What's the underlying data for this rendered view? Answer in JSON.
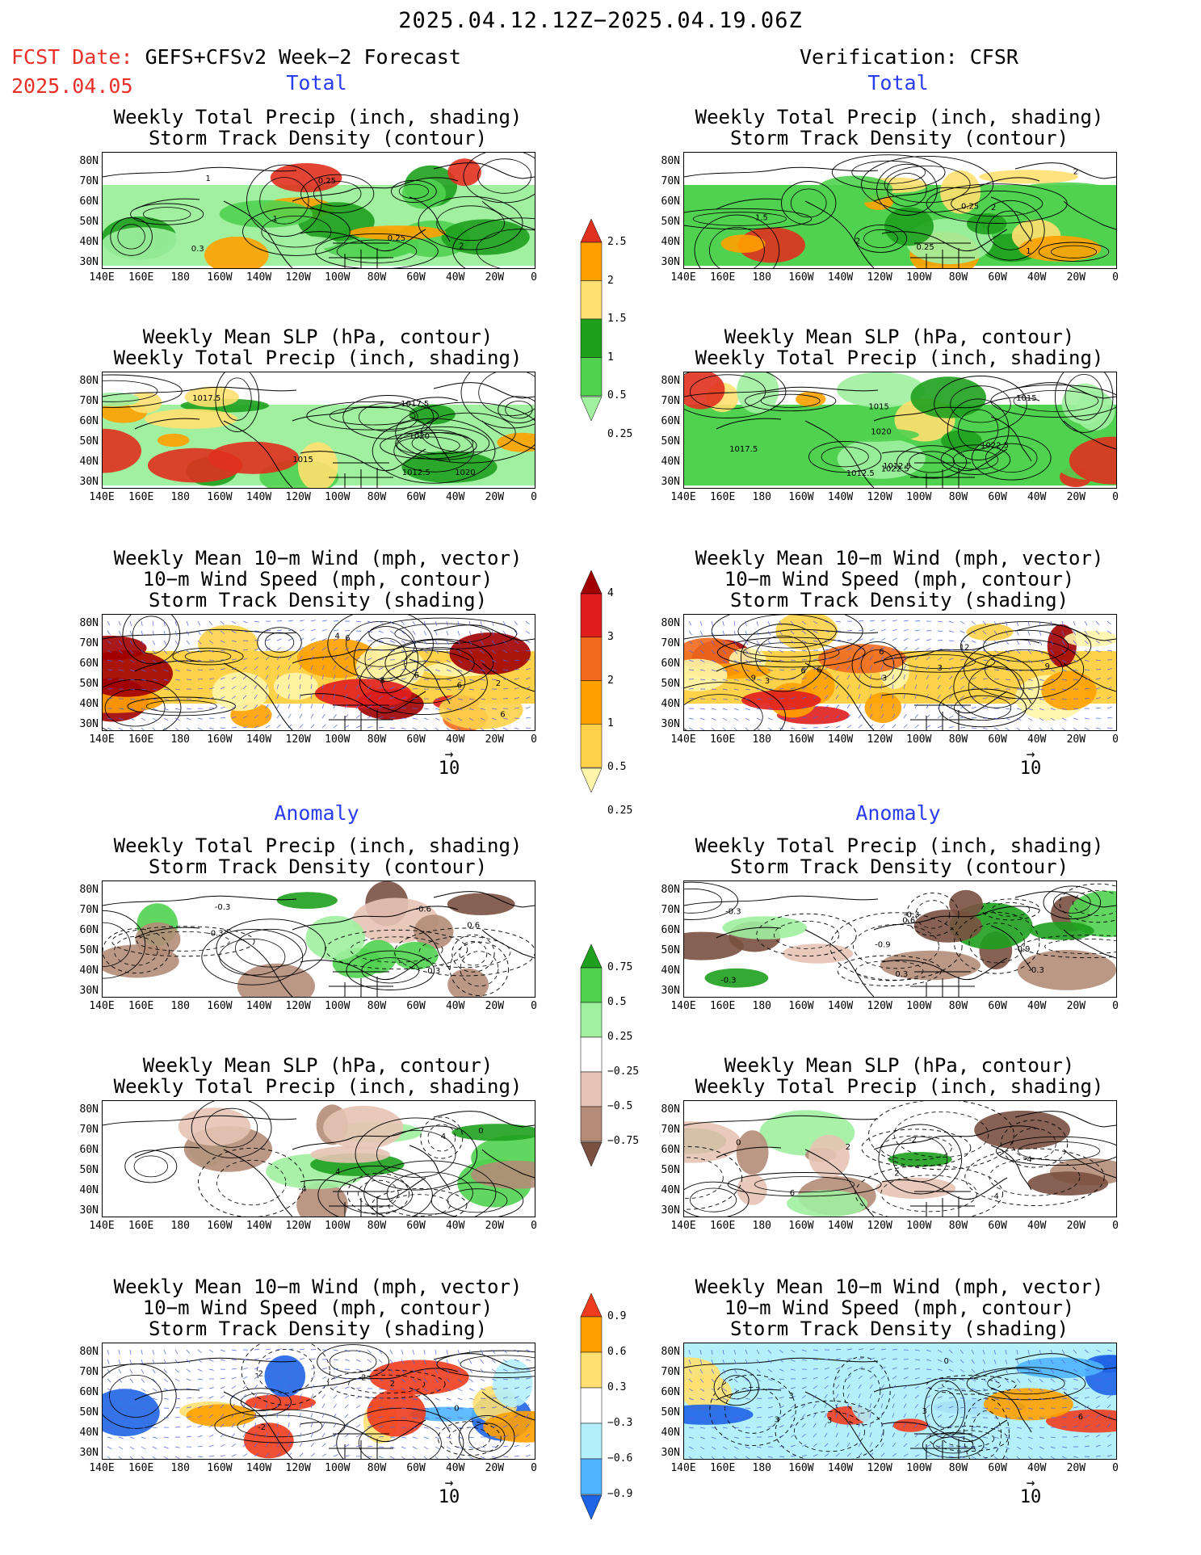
{
  "header": {
    "period": "2025.04.12.12Z−2025.04.19.06Z",
    "fcst_prefix": "FCST Date:",
    "fcst_model": "GEFS+CFSv2 Week−2 Forecast",
    "fcst_date": "2025.04.05",
    "verification": "Verification: CFSR"
  },
  "sections": {
    "total": "Total",
    "anomaly": "Anomaly"
  },
  "panel_titles": {
    "precip_track": [
      "Weekly Total Precip (inch, shading)",
      "Storm Track Density (contour)"
    ],
    "slp_precip": [
      "Weekly Mean SLP (hPa, contour)",
      "Weekly Total Precip (inch, shading)"
    ],
    "wind_track": [
      "Weekly Mean 10−m Wind (mph, vector)",
      "10−m Wind Speed (mph, contour)",
      "Storm Track Density (shading)"
    ]
  },
  "axes": {
    "lat_labels": [
      "80N",
      "70N",
      "60N",
      "50N",
      "40N",
      "30N"
    ],
    "lon_labels": [
      "140E",
      "160E",
      "180",
      "160W",
      "140W",
      "120W",
      "100W",
      "80W",
      "60W",
      "40W",
      "20W",
      "0"
    ]
  },
  "vector_ref": {
    "value": "10",
    "arrow": "→"
  },
  "colorbars": {
    "precip_total": {
      "labels": [
        "2.5",
        "2",
        "1.5",
        "1",
        "0.5",
        "0.25"
      ],
      "colors": [
        "#e0301e",
        "#ffa000",
        "#ffe070",
        "#1ea01e",
        "#50d250",
        "#a0f0a0"
      ]
    },
    "track_total": {
      "labels": [
        "4",
        "3",
        "2",
        "1",
        "0.5",
        "0.25"
      ],
      "colors": [
        "#a00000",
        "#e01e1e",
        "#f06a1e",
        "#ffa000",
        "#ffd24a",
        "#fff5aa"
      ]
    },
    "precip_anom": {
      "labels": [
        "0.75",
        "0.5",
        "0.25",
        "−0.25",
        "−0.5",
        "−0.75"
      ],
      "colors": [
        "#1ea01e",
        "#50d250",
        "#a0f0a0",
        "#ffffff",
        "#e6c3b4",
        "#b48c78",
        "#7a5040"
      ]
    },
    "track_anom": {
      "labels": [
        "0.9",
        "0.6",
        "0.3",
        "−0.3",
        "−0.6",
        "−0.9"
      ],
      "colors": [
        "#f03c1e",
        "#ffa000",
        "#ffe070",
        "#ffffff",
        "#b4f0fa",
        "#50b4ff",
        "#1e64e6"
      ]
    }
  },
  "contour_labels": {
    "L1": [
      "1",
      "0.3",
      "0.25",
      "0.25",
      "1",
      "2"
    ],
    "R1": [
      "0.25",
      "2",
      "1.5",
      "2",
      "1",
      "2",
      "0.25"
    ],
    "L2": [
      "1017.5",
      "1020",
      "1020",
      "1017.5",
      "1015",
      "1012.5"
    ],
    "R2": [
      "1022.5",
      "1020",
      "1012.5",
      "1015",
      "1017.5",
      "1015",
      "1022.5",
      "1012.5"
    ],
    "L3": [
      "2",
      "4",
      "6",
      "6",
      "8",
      "6",
      "6"
    ],
    "R3": [
      "6",
      "9",
      "3",
      "3",
      "6",
      "12",
      "9",
      "6",
      "3"
    ],
    "L4": [
      "-0.6",
      "-0.3",
      "-0.3",
      "0.3",
      "0.6"
    ],
    "R4": [
      "-0.3",
      "-0.9",
      "-0.3",
      "0.3",
      "-0.3",
      "0.6",
      "-0.3",
      "-0.9"
    ],
    "L5": [
      "4",
      "0",
      "-4",
      "4"
    ],
    "R5": [
      "-4",
      "2",
      "0",
      "-2",
      "-4",
      "2",
      "6"
    ],
    "L6": [
      "-2",
      "-2",
      "2",
      "0",
      "-2"
    ],
    "R6": [
      "0",
      "3",
      "3",
      "3",
      "6",
      "3"
    ]
  }
}
